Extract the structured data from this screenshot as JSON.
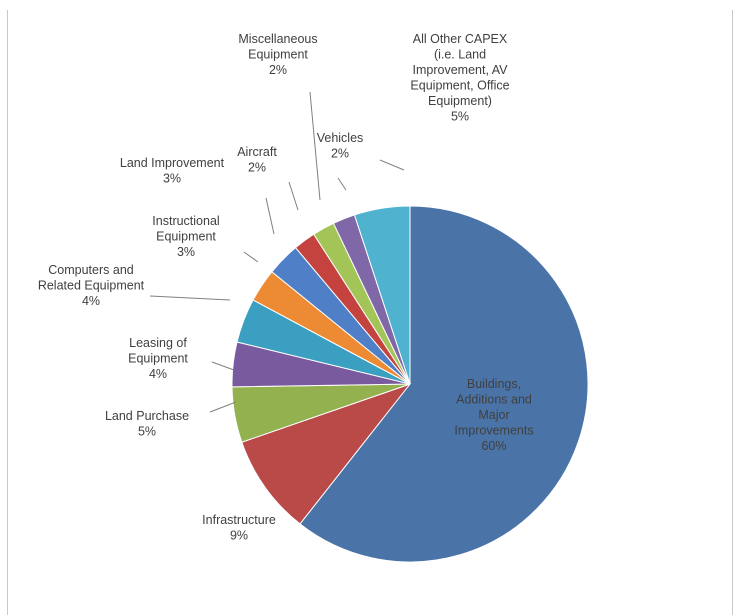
{
  "title": "",
  "colors": {
    "background": "#ffffff",
    "frame": "#c8c8c8",
    "label_text": "#404040",
    "leader": "#808080"
  },
  "chart_data": {
    "type": "pie",
    "title": "",
    "start_angle_deg": 0,
    "direction": "clockwise",
    "legend": "none",
    "slices": [
      {
        "label": [
          "Buildings,",
          "Additions and",
          "Major",
          "Improvements",
          "60%"
        ],
        "value": 60,
        "color": "#4a73a8"
      },
      {
        "label": [
          "Infrastructure",
          "9%"
        ],
        "value": 9,
        "color": "#b94a48"
      },
      {
        "label": [
          "Land Purchase",
          "5%"
        ],
        "value": 5,
        "color": "#93b24f"
      },
      {
        "label": [
          "Leasing of",
          "Equipment",
          "4%"
        ],
        "value": 4,
        "color": "#7a5a9e"
      },
      {
        "label": [
          "Computers and",
          "Related Equipment",
          "4%"
        ],
        "value": 4,
        "color": "#3b9fc2"
      },
      {
        "label": [
          "Instructional",
          "Equipment",
          "3%"
        ],
        "value": 3,
        "color": "#ec8b33"
      },
      {
        "label": [
          "Land Improvement",
          "3%"
        ],
        "value": 3,
        "color": "#4f7fc6"
      },
      {
        "label": [
          "Aircraft",
          "2%"
        ],
        "value": 2,
        "color": "#c4433f"
      },
      {
        "label": [
          "Miscellaneous",
          "Equipment",
          "2%"
        ],
        "value": 2,
        "color": "#a3c558"
      },
      {
        "label": [
          "Vehicles",
          "2%"
        ],
        "value": 2,
        "color": "#8067a8"
      },
      {
        "label": [
          "All Other CAPEX",
          "(i.e. Land",
          "Improvement, AV",
          "Equipment, Office",
          "Equipment)",
          "5%"
        ],
        "value": 5,
        "color": "#4fb3d0"
      }
    ]
  }
}
